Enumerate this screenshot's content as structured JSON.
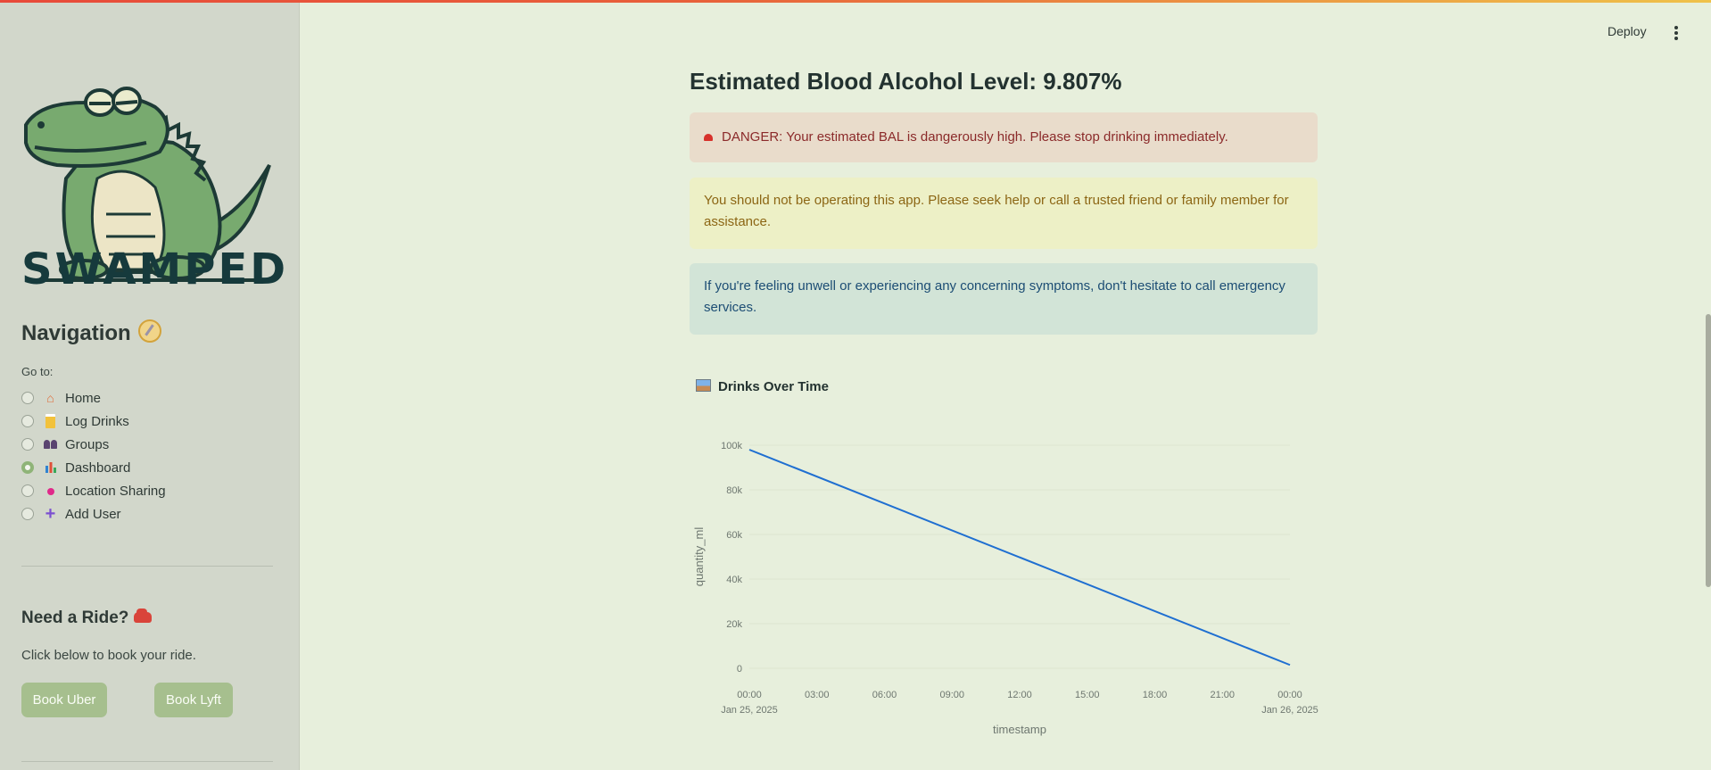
{
  "app": {
    "logo_text": "SWAMPED"
  },
  "header": {
    "deploy_label": "Deploy",
    "menu_icon": "kebab-menu-icon"
  },
  "sidebar": {
    "nav_title": "Navigation",
    "goto_label": "Go to:",
    "items": [
      {
        "label": "Home",
        "icon": "house-icon",
        "selected": false
      },
      {
        "label": "Log Drinks",
        "icon": "beer-icon",
        "selected": false
      },
      {
        "label": "Groups",
        "icon": "people-icon",
        "selected": false
      },
      {
        "label": "Dashboard",
        "icon": "bar-chart-icon",
        "selected": true
      },
      {
        "label": "Location Sharing",
        "icon": "pin-icon",
        "selected": false
      },
      {
        "label": "Add User",
        "icon": "plus-icon",
        "selected": false
      }
    ],
    "ride": {
      "title": "Need a Ride?",
      "text": "Click below to book your ride.",
      "uber_label": "Book Uber",
      "lyft_label": "Book Lyft"
    }
  },
  "main": {
    "bal_title": "Estimated Blood Alcohol Level: 9.807%",
    "danger_text": "DANGER: Your estimated BAL is dangerously high. Please stop drinking immediately.",
    "warning_text": "You should not be operating this app. Please seek help or call a trusted friend or family member for assistance.",
    "info_text": "If you're feeling unwell or experiencing any concerning symptoms, don't hesitate to call emergency services.",
    "chart_title": "Drinks Over Time"
  },
  "colors": {
    "accent": "#a6bf8e",
    "line": "#1f6fd1",
    "danger": "#8b2a2a"
  },
  "chart_data": {
    "type": "line",
    "title": "Drinks Over Time",
    "xlabel": "timestamp",
    "ylabel": "quantity_ml",
    "x_ticks": [
      "00:00",
      "03:00",
      "06:00",
      "09:00",
      "12:00",
      "15:00",
      "18:00",
      "21:00",
      "00:00"
    ],
    "x_tick_dates": [
      "Jan 25, 2025",
      "",
      "",
      "",
      "",
      "",
      "",
      "",
      "Jan 26, 2025"
    ],
    "y_ticks": [
      "0",
      "20k",
      "40k",
      "60k",
      "80k",
      "100k"
    ],
    "ylim": [
      0,
      100000
    ],
    "xlim_hours": [
      0,
      24
    ],
    "series": [
      {
        "points": [
          {
            "x": "2025-01-25 00:00",
            "y": 98000
          },
          {
            "x": "2025-01-26 00:00",
            "y": 1500
          }
        ]
      }
    ]
  }
}
